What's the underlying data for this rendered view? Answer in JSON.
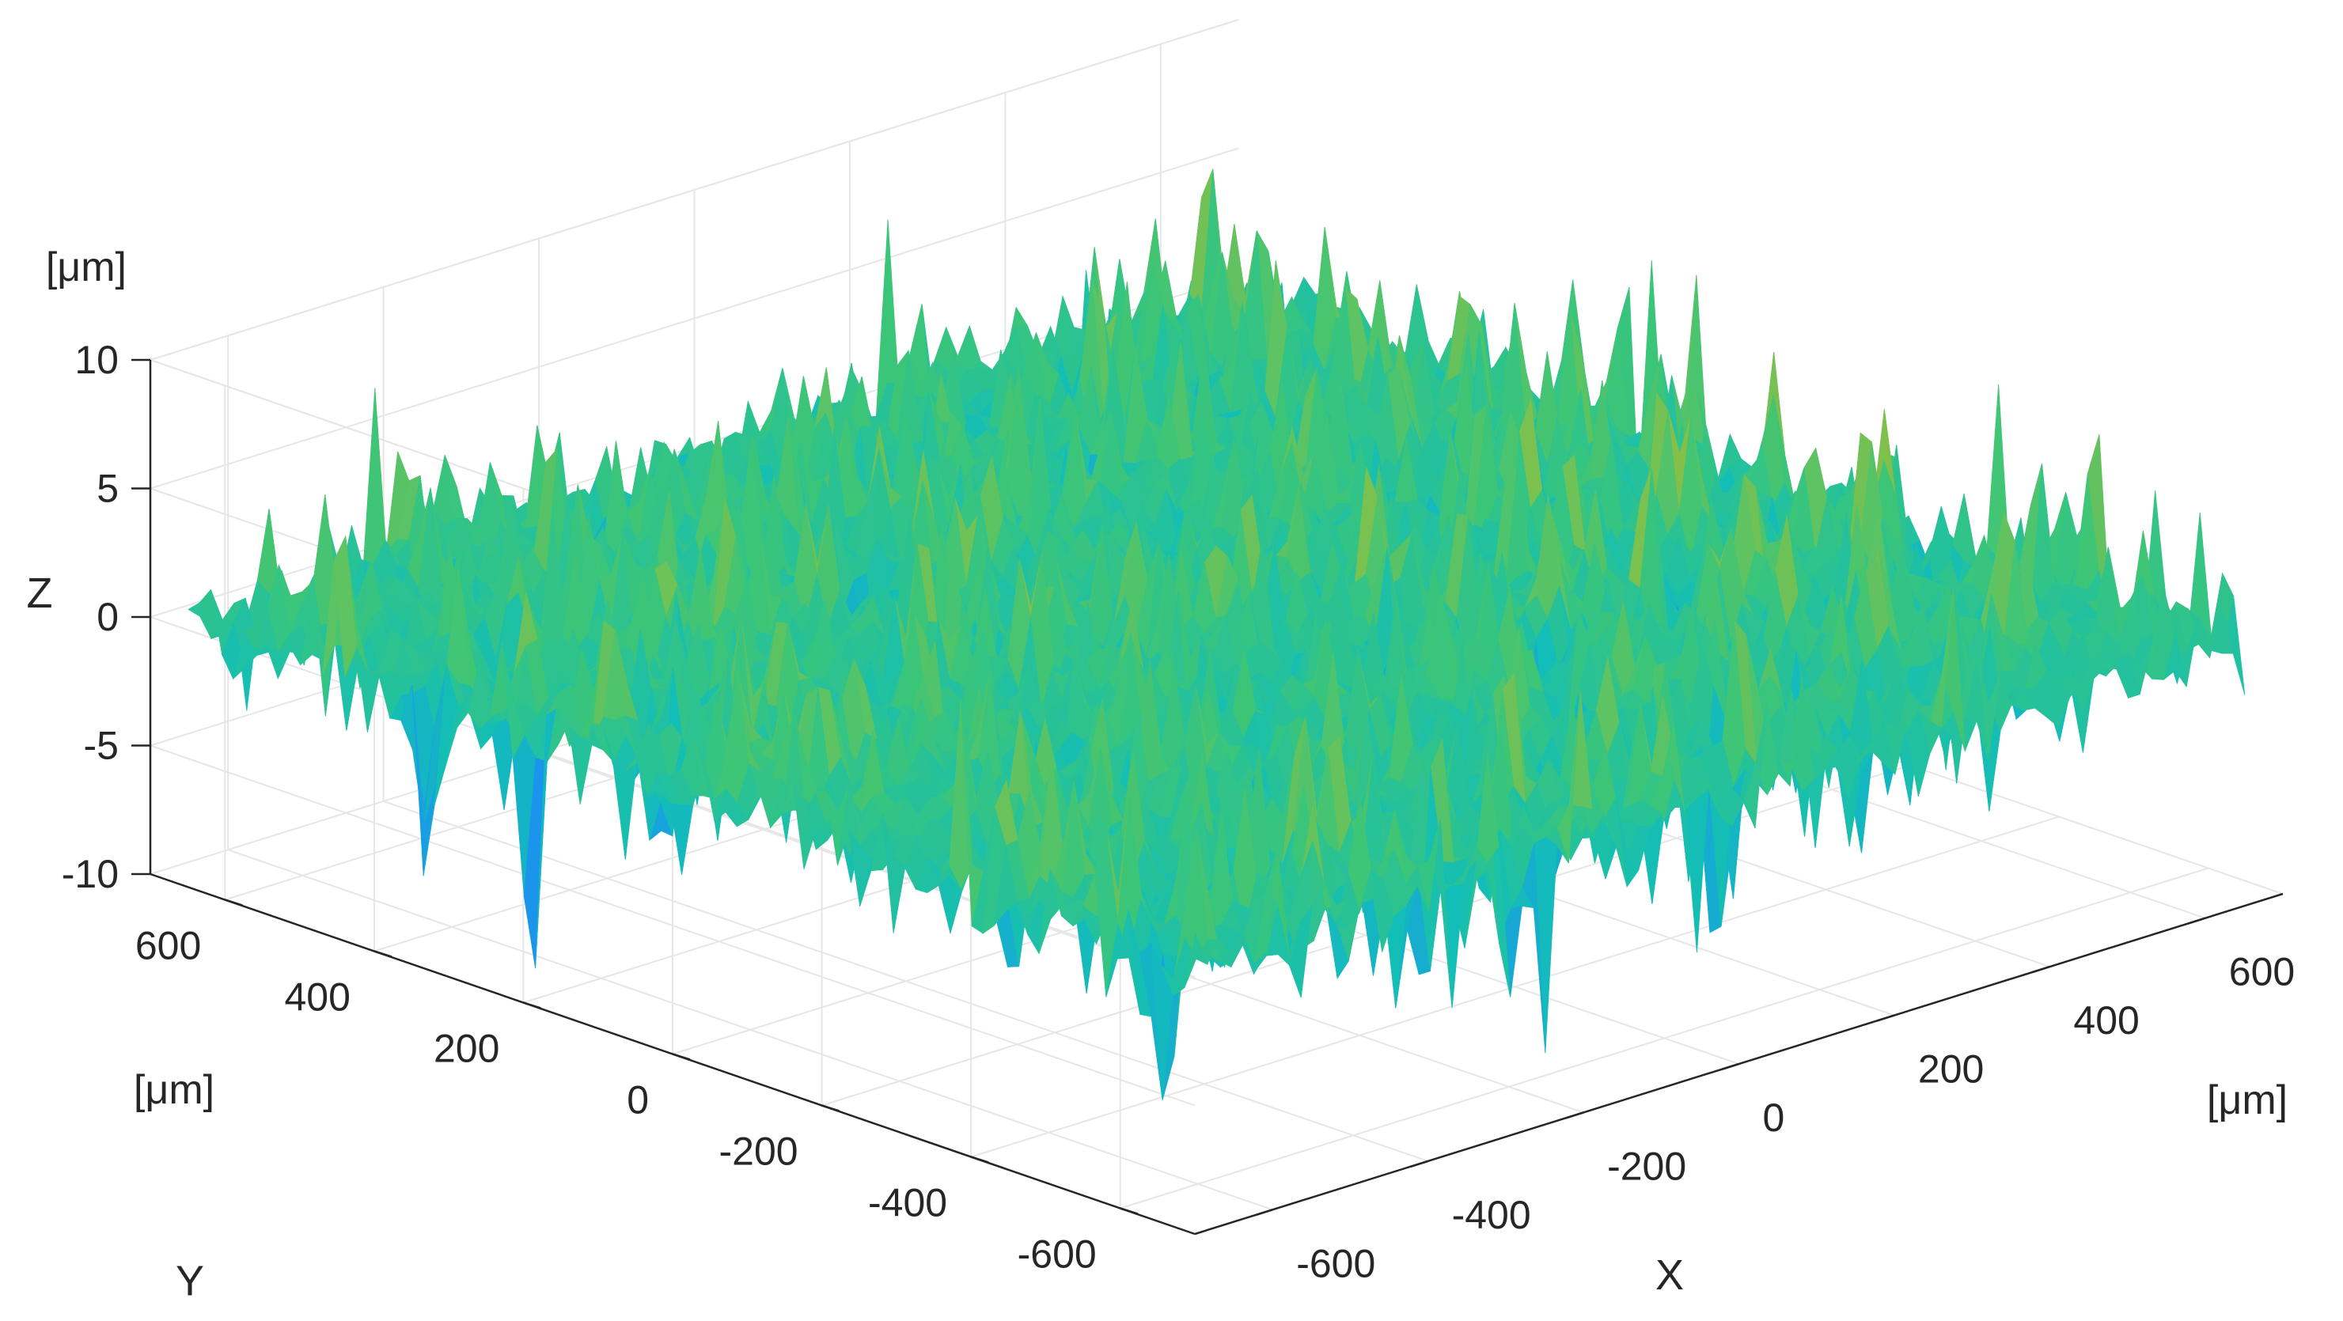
{
  "chart_data": {
    "type": "surface",
    "title": "",
    "colormap": "parula",
    "x": {
      "label": "X",
      "unit": "[μm]",
      "range": [
        -700,
        700
      ],
      "ticks": [
        -600,
        -400,
        -200,
        0,
        200,
        400,
        600
      ],
      "tick_labels": [
        "-600",
        "-400",
        "-200",
        "0",
        "200",
        "400",
        "600"
      ]
    },
    "y": {
      "label": "Y",
      "unit": "[μm]",
      "range": [
        -700,
        700
      ],
      "ticks": [
        -600,
        -400,
        -200,
        0,
        200,
        400,
        600
      ],
      "tick_labels": [
        "-600",
        "-400",
        "-200",
        "0",
        "200",
        "400",
        "600"
      ]
    },
    "z": {
      "label": "Z",
      "unit": "[μm]",
      "range": [
        -10,
        10
      ],
      "ticks": [
        -10,
        -5,
        0,
        5,
        10
      ],
      "tick_labels": [
        "-10",
        "-5",
        "0",
        "5",
        "10"
      ]
    },
    "surface": {
      "description": "random rough surface",
      "z_typical_range": [
        -9,
        9
      ]
    },
    "grid": true,
    "legend": "none"
  },
  "colors": {
    "axis": "#262626",
    "grid": "#e6e6e6",
    "surface_low": "#3e26a8",
    "surface_mid": "#13beb7",
    "surface_high": "#f9c22b"
  }
}
